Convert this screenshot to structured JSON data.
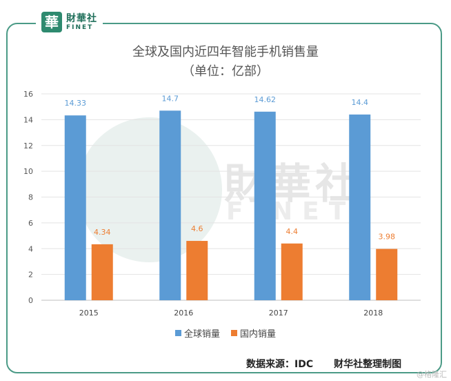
{
  "logo": {
    "cn": "財華社",
    "en": "FINET",
    "mark": "華"
  },
  "watermark": {
    "cn": "財華社",
    "en": "FINET",
    "corner": "@格隆汇"
  },
  "chart_data": {
    "type": "bar",
    "title": "全球及国内近四年智能手机销售量",
    "subtitle": "（单位：亿部）",
    "categories": [
      "2015",
      "2016",
      "2017",
      "2018"
    ],
    "series": [
      {
        "name": "全球销量",
        "values": [
          14.33,
          14.7,
          14.62,
          14.4
        ],
        "labels": [
          "14.33",
          "14.7",
          "14.62",
          "14.4"
        ],
        "color": "#5b9bd5"
      },
      {
        "name": "国内销量",
        "values": [
          4.34,
          4.6,
          4.4,
          3.98
        ],
        "labels": [
          "4.34",
          "4.6",
          "4.4",
          "3.98"
        ],
        "color": "#ed7d31"
      }
    ],
    "ylim": [
      0,
      16
    ],
    "yticks": [
      "0",
      "2",
      "4",
      "6",
      "8",
      "10",
      "12",
      "14",
      "16"
    ],
    "grid": true,
    "legend": "bottom"
  },
  "source": {
    "left": "数据来源：IDC",
    "right": "财华社整理制图"
  }
}
